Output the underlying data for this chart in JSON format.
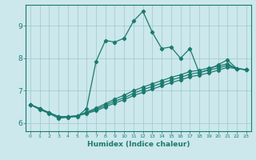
{
  "xlabel": "Humidex (Indice chaleur)",
  "bg_color": "#cce8ec",
  "grid_color": "#9ec8cc",
  "line_color": "#1a7a6e",
  "xlim": [
    -0.5,
    23.5
  ],
  "ylim": [
    5.75,
    9.65
  ],
  "yticks": [
    6,
    7,
    8,
    9
  ],
  "xticks": [
    0,
    1,
    2,
    3,
    4,
    5,
    6,
    7,
    8,
    9,
    10,
    11,
    12,
    13,
    14,
    15,
    16,
    17,
    18,
    19,
    20,
    21,
    22,
    23
  ],
  "series": [
    [
      6.57,
      6.42,
      6.3,
      6.15,
      6.18,
      6.2,
      6.45,
      7.9,
      8.55,
      8.5,
      8.62,
      9.15,
      9.45,
      8.8,
      8.3,
      8.35,
      8.0,
      8.3,
      7.55,
      7.65,
      7.8,
      7.95,
      7.68,
      7.65
    ],
    [
      6.57,
      6.45,
      6.32,
      6.2,
      6.2,
      6.22,
      6.3,
      6.38,
      6.5,
      6.62,
      6.72,
      6.85,
      6.95,
      7.05,
      7.15,
      7.25,
      7.33,
      7.43,
      7.48,
      7.55,
      7.63,
      7.72,
      7.68,
      7.65
    ],
    [
      6.57,
      6.45,
      6.32,
      6.2,
      6.2,
      6.22,
      6.32,
      6.42,
      6.55,
      6.68,
      6.78,
      6.92,
      7.03,
      7.13,
      7.23,
      7.33,
      7.41,
      7.51,
      7.56,
      7.63,
      7.7,
      7.78,
      7.68,
      7.65
    ],
    [
      6.57,
      6.45,
      6.32,
      6.2,
      6.2,
      6.22,
      6.34,
      6.46,
      6.6,
      6.74,
      6.86,
      7.0,
      7.11,
      7.21,
      7.31,
      7.41,
      7.49,
      7.59,
      7.63,
      7.7,
      7.76,
      7.83,
      7.68,
      7.65
    ]
  ]
}
